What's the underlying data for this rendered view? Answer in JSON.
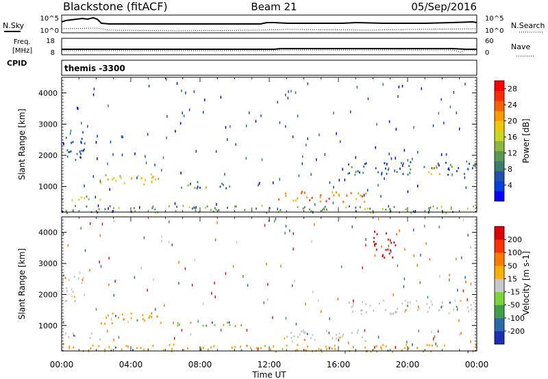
{
  "header": {
    "station": "Blackstone (fitACF)",
    "beam": "Beam 21",
    "date": "05/Sep/2016"
  },
  "status_panels": {
    "nsky_label": "N.Sky",
    "nsearch_label": "N.Search",
    "freq_label_line1": "Freq.",
    "freq_label_line2": "[MHz]",
    "nave_label": "Nave",
    "cpid_label": "CPID",
    "noise_tick_high": "10^5",
    "noise_tick_low": "10^0",
    "freq_tick_high": "18",
    "freq_tick_low": "8",
    "nave_tick_high": "60",
    "nave_tick_low": "0",
    "cpid_text": "themis -3300"
  },
  "chart_data": [
    {
      "type": "heatmap",
      "name": "power",
      "xlabel": "",
      "ylabel": "Slant Range [km]",
      "x_ticks": [
        "00:00",
        "04:00",
        "08:00",
        "12:00",
        "16:00",
        "20:00",
        "00:00"
      ],
      "x_range_hours": [
        0,
        24
      ],
      "y_range_km": [
        180,
        4500
      ],
      "y_ticks": [
        1000,
        2000,
        3000,
        4000
      ],
      "colorbar": {
        "label": "Power [dB]",
        "ticks": [
          "4",
          "8",
          "12",
          "16",
          "20",
          "24",
          "28"
        ],
        "range": [
          0,
          30
        ],
        "colors": [
          "#0000ff",
          "#0040e0",
          "#2050b0",
          "#3a7d6a",
          "#5a9a50",
          "#8ab83c",
          "#c8d820",
          "#f0c800",
          "#ff9a00",
          "#ff6000",
          "#ff2a00",
          "#ff0000"
        ]
      },
      "regions": [
        {
          "t": [
            0.0,
            1.3
          ],
          "r": [
            1800,
            2700
          ],
          "v": 7
        },
        {
          "t": [
            0.0,
            2.3
          ],
          "r": [
            560,
            780
          ],
          "v": 15
        },
        {
          "t": [
            2.2,
            5.9
          ],
          "r": [
            1050,
            1420
          ],
          "v": 17
        },
        {
          "t": [
            6.4,
            10.4
          ],
          "r": [
            970,
            1180
          ],
          "v": 10
        },
        {
          "t": [
            12.3,
            17.6
          ],
          "r": [
            530,
            880
          ],
          "v": 22
        },
        {
          "t": [
            16.5,
            24.0
          ],
          "r": [
            1400,
            1850
          ],
          "v": 8
        },
        {
          "t": [
            21.0,
            21.9
          ],
          "r": [
            1350,
            1700
          ],
          "v": 18
        },
        {
          "t": [
            0.0,
            24.0
          ],
          "r": [
            180,
            420
          ],
          "v": 12
        }
      ]
    },
    {
      "type": "heatmap",
      "name": "velocity",
      "xlabel": "Time UT",
      "ylabel": "Slant Range [km]",
      "x_ticks": [
        "00:00",
        "04:00",
        "08:00",
        "12:00",
        "16:00",
        "20:00",
        "00:00"
      ],
      "x_range_hours": [
        0,
        24
      ],
      "y_range_km": [
        180,
        4500
      ],
      "y_ticks": [
        1000,
        2000,
        3000,
        4000
      ],
      "colorbar": {
        "label": "Velocity [m s-1]",
        "ticks": [
          "200",
          "100",
          "50",
          "15",
          "-15",
          "-50",
          "-100",
          "-200"
        ],
        "colors": [
          "#1a2eb8",
          "#2a6aa8",
          "#3fa048",
          "#7ad43a",
          "#c8c8c8",
          "#ffb000",
          "#ff7a00",
          "#ff3000",
          "#e00000"
        ]
      },
      "regions": [
        {
          "t": [
            0.0,
            1.3
          ],
          "r": [
            1800,
            2700
          ],
          "v": "gray"
        },
        {
          "t": [
            0.0,
            2.3
          ],
          "r": [
            560,
            780
          ],
          "v": "gray"
        },
        {
          "t": [
            2.2,
            5.9
          ],
          "r": [
            1050,
            1420
          ],
          "v": "orange"
        },
        {
          "t": [
            6.4,
            10.4
          ],
          "r": [
            970,
            1180
          ],
          "v": "green"
        },
        {
          "t": [
            12.3,
            17.6
          ],
          "r": [
            530,
            880
          ],
          "v": "gray"
        },
        {
          "t": [
            16.5,
            24.0
          ],
          "r": [
            1400,
            1850
          ],
          "v": "gray"
        },
        {
          "t": [
            18.0,
            19.5
          ],
          "r": [
            3200,
            4100
          ],
          "v": "red"
        },
        {
          "t": [
            0.0,
            24.0
          ],
          "r": [
            180,
            420
          ],
          "v": "orange"
        }
      ]
    }
  ]
}
